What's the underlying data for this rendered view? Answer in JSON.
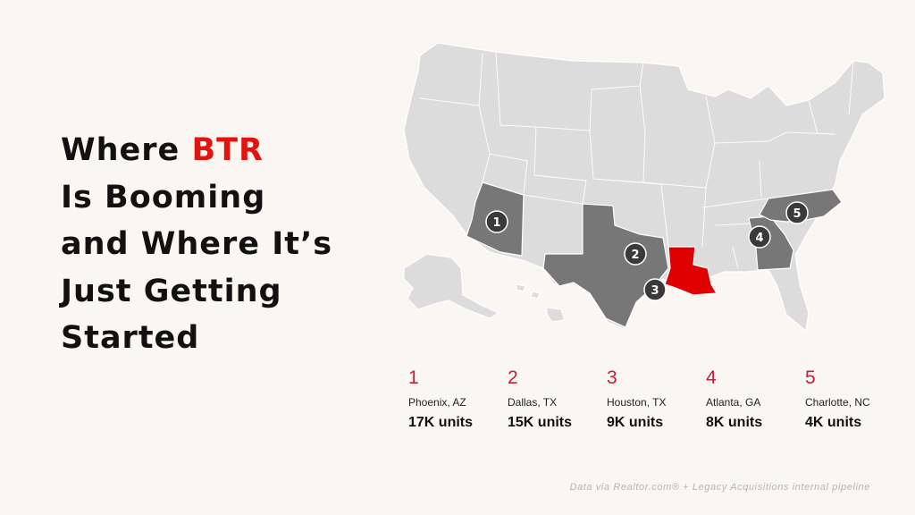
{
  "title": {
    "line1_before": "Where ",
    "line1_accent": "BTR",
    "line2": "Is Booming",
    "line3": "and Where It’s",
    "line4": "Just Getting",
    "line5": "Started"
  },
  "colors": {
    "accent": "#e3140f",
    "rank_number": "#c2203b",
    "highlight_state": "#e00000",
    "ranked_state": "#777777",
    "base_state": "#dcdcdc",
    "marker": "#3a3a3a"
  },
  "map": {
    "markers": [
      "1",
      "2",
      "3",
      "4",
      "5"
    ]
  },
  "stats": [
    {
      "rank": "1",
      "city": "Phoenix, AZ",
      "units": "17K units"
    },
    {
      "rank": "2",
      "city": "Dallas, TX",
      "units": "15K units"
    },
    {
      "rank": "3",
      "city": "Houston, TX",
      "units": "9K units"
    },
    {
      "rank": "4",
      "city": "Atlanta, GA",
      "units": "8K units"
    },
    {
      "rank": "5",
      "city": "Charlotte, NC",
      "units": "4K units"
    }
  ],
  "footnote": "Data via Realtor.com® + Legacy Acquisitions internal pipeline"
}
